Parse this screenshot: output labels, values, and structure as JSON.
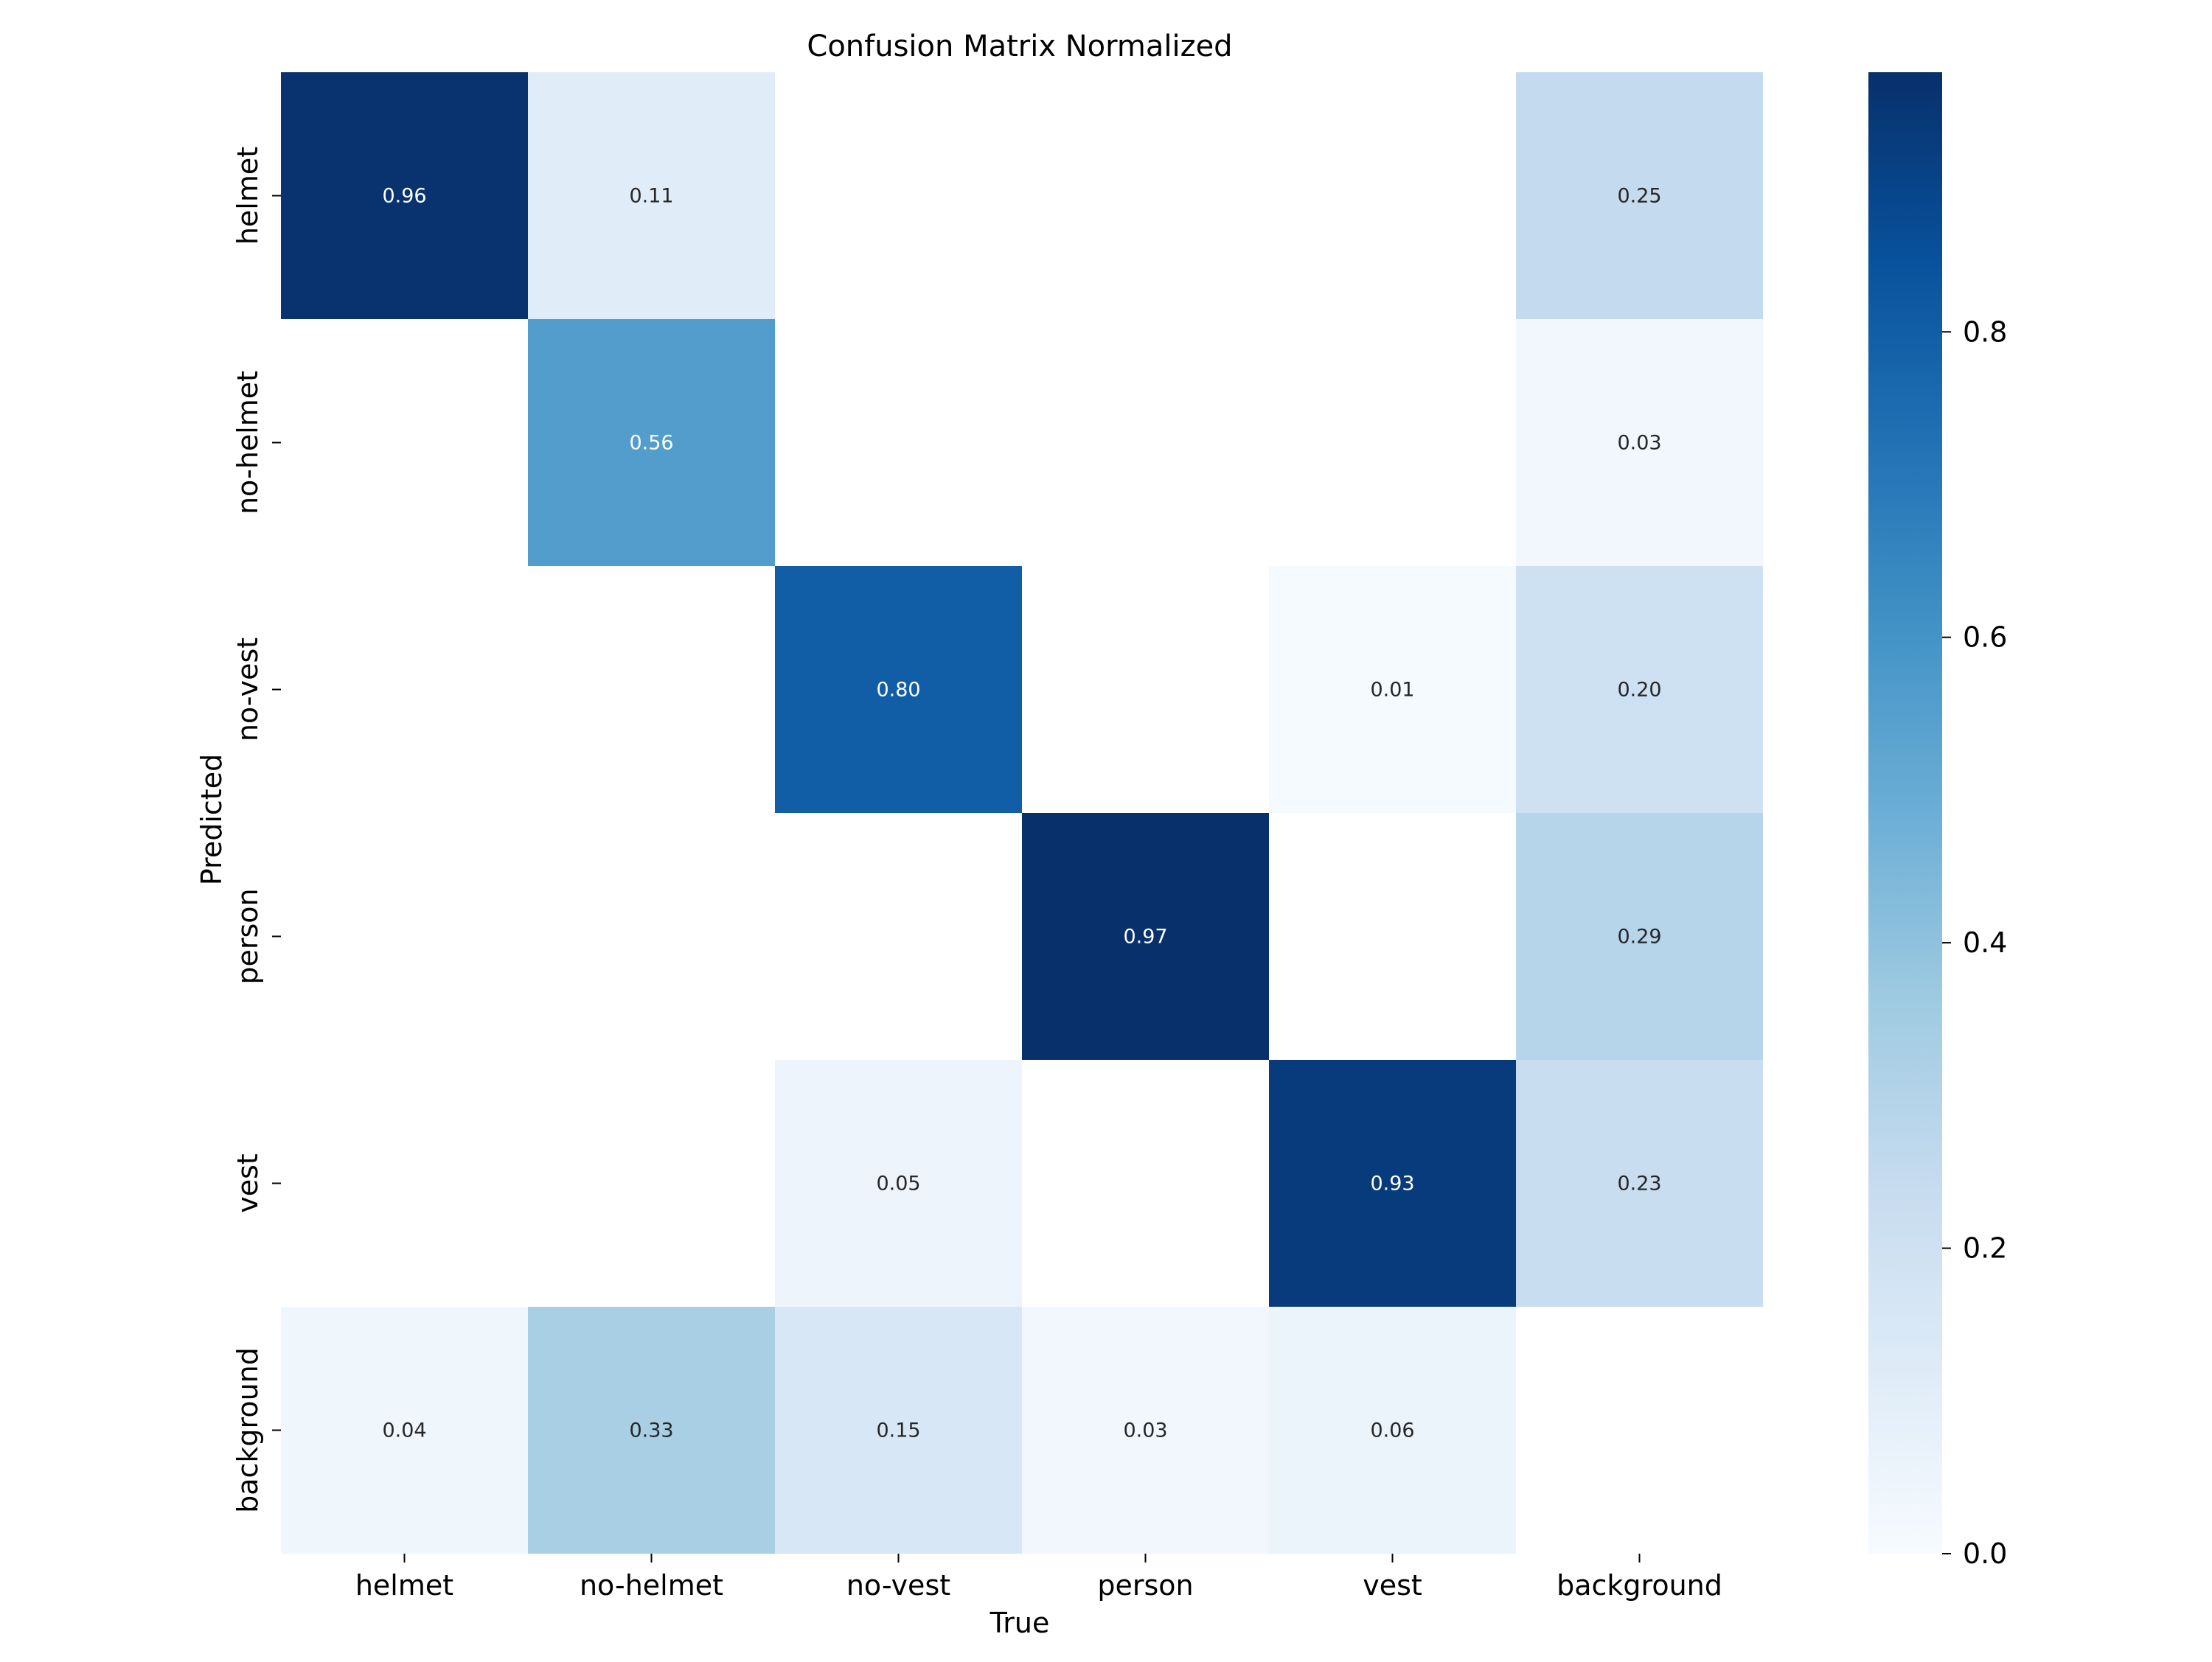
{
  "chart_data": {
    "type": "heatmap",
    "title": "Confusion Matrix Normalized",
    "xlabel": "True",
    "ylabel": "Predicted",
    "x_categories": [
      "helmet",
      "no-helmet",
      "no-vest",
      "person",
      "vest",
      "background"
    ],
    "y_categories": [
      "helmet",
      "no-helmet",
      "no-vest",
      "person",
      "vest",
      "background"
    ],
    "values": [
      [
        0.96,
        0.11,
        null,
        null,
        null,
        0.25
      ],
      [
        null,
        0.56,
        null,
        null,
        null,
        0.03
      ],
      [
        null,
        null,
        0.8,
        null,
        0.01,
        0.2
      ],
      [
        null,
        null,
        null,
        0.97,
        null,
        0.29
      ],
      [
        null,
        null,
        0.05,
        null,
        0.93,
        0.23
      ],
      [
        0.04,
        0.33,
        0.15,
        0.03,
        0.06,
        null
      ]
    ],
    "value_format": "2 decimals",
    "colormap": "Blues",
    "colormap_stops": [
      "#f7fbff",
      "#deebf7",
      "#c6dbef",
      "#9ecae1",
      "#6baed6",
      "#4292c6",
      "#2171b5",
      "#08519c",
      "#08306b"
    ],
    "color_range": [
      0,
      0.97
    ],
    "colorbar": {
      "ticks": [
        0.0,
        0.2,
        0.4,
        0.6,
        0.8
      ],
      "tick_labels": [
        "0.0",
        "0.2",
        "0.4",
        "0.6",
        "0.8"
      ]
    }
  }
}
